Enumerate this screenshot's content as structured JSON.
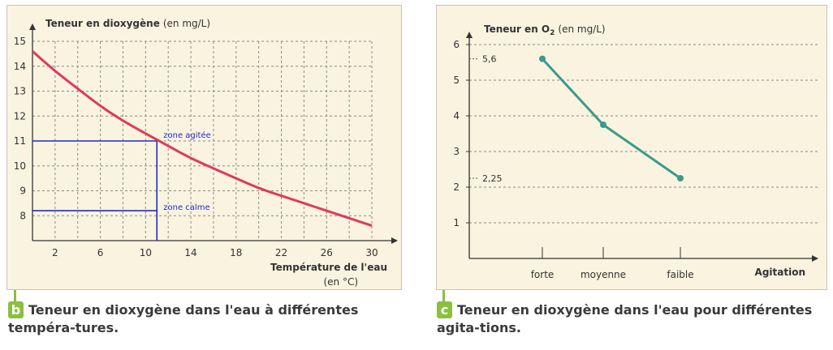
{
  "panel_b": {
    "ylabel_bold": "Teneur en dioxygène",
    "ylabel_unit": "(en mg/L)",
    "xlabel": "Température de l'eau",
    "xunit": "(en °C)",
    "x_ticks": [
      "2",
      "6",
      "10",
      "14",
      "18",
      "22",
      "26",
      "30"
    ],
    "y_ticks": [
      "8",
      "9",
      "10",
      "11",
      "12",
      "13",
      "14",
      "15"
    ],
    "annotation_agitee": "zone agitée",
    "annotation_calme": "zone calme"
  },
  "panel_c": {
    "ylabel_bold": "Teneur en O",
    "ylabel_sub": "2",
    "ylabel_unit": "(en mg/L)",
    "xlabel": "Agitation",
    "categories": [
      "forte",
      "moyenne",
      "faible"
    ],
    "y_ticks": [
      "1",
      "2",
      "3",
      "4",
      "5",
      "6"
    ],
    "value_label_top": "5,6",
    "value_label_bottom": "2,25"
  },
  "caption_b": {
    "letter": "b",
    "text": "Teneur en dioxygène dans l'eau à différentes tempéra-tures."
  },
  "caption_c": {
    "letter": "c",
    "text": "Teneur en dioxygène dans l'eau pour différentes agita-tions."
  },
  "chart_data": [
    {
      "type": "line",
      "xlabel": "Température de l'eau (en °C)",
      "ylabel": "Teneur en dioxygène (en mg/L)",
      "xlim": [
        0,
        30
      ],
      "ylim": [
        7,
        15
      ],
      "grid": true,
      "series": [
        {
          "color": "#e0395a",
          "x": [
            0,
            2,
            4,
            6,
            8,
            10,
            12,
            14,
            16,
            18,
            20,
            22,
            24,
            26,
            28,
            30
          ],
          "y": [
            14.6,
            13.8,
            13.1,
            12.4,
            11.8,
            11.3,
            10.8,
            10.3,
            9.9,
            9.5,
            9.1,
            8.8,
            8.5,
            8.2,
            7.9,
            7.6
          ]
        }
      ],
      "annotations": [
        {
          "label": "zone agitée",
          "x": 11,
          "y": 11
        },
        {
          "label": "zone calme",
          "x": 11,
          "y": 8.2
        }
      ]
    },
    {
      "type": "line",
      "xlabel": "Agitation",
      "ylabel": "Teneur en O2 (en mg/L)",
      "categories": [
        "forte",
        "moyenne",
        "faible"
      ],
      "ylim": [
        0,
        6
      ],
      "grid": true,
      "series": [
        {
          "color": "#3a9a8e",
          "values": [
            5.6,
            3.75,
            2.25
          ]
        }
      ]
    }
  ]
}
